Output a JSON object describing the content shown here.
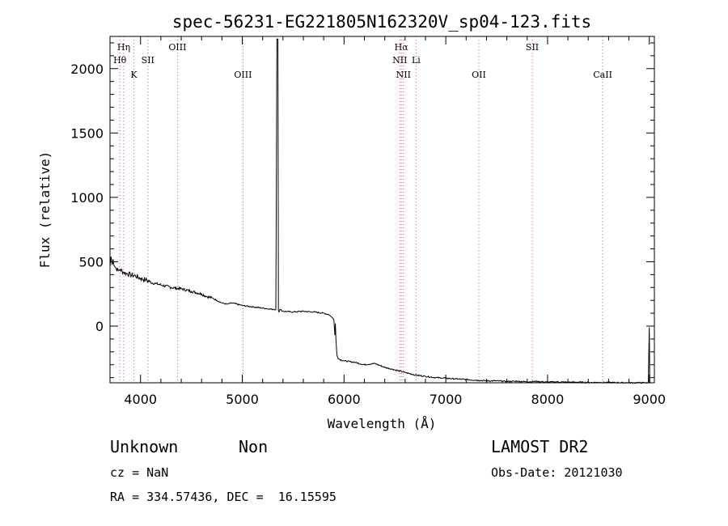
{
  "chart_data": {
    "type": "line",
    "title": "spec-56231-EG221805N162320V_sp04-123.fits",
    "xlabel": "Wavelength (Å)",
    "ylabel": "Flux (relative)",
    "xlim": [
      3700,
      9050
    ],
    "ylim": [
      -440,
      2250
    ],
    "xticks": [
      4000,
      5000,
      6000,
      7000,
      8000,
      9000
    ],
    "yticks": [
      0,
      500,
      1000,
      1500,
      2000
    ],
    "grid": false,
    "series": [
      {
        "x": [
          3700,
          3710,
          3720,
          3730,
          3740,
          3760,
          3780,
          3800,
          3830,
          3860,
          3900,
          3950,
          4000,
          4050,
          4100,
          4150,
          4200,
          4300,
          4400,
          4500,
          4600,
          4650,
          4700,
          4750,
          4800,
          4850,
          4900,
          5000,
          5100,
          5200,
          5300,
          5330,
          5340,
          5345,
          5350,
          5355,
          5360,
          5370,
          5400,
          5500,
          5600,
          5700,
          5800,
          5850,
          5880,
          5900,
          5910,
          5915,
          5920,
          5930,
          5940,
          5960,
          6000,
          6100,
          6200,
          6300,
          6400,
          6500,
          6600,
          6700,
          6800,
          6900,
          7000,
          7100,
          7200,
          7300,
          7400,
          7500,
          7600,
          7700,
          7800,
          7900,
          8000,
          8100,
          8200,
          8300,
          8400,
          8500,
          8600,
          8700,
          8800,
          8850,
          8900,
          8950,
          8990,
          9000,
          9005,
          9010,
          9020
        ],
        "y": [
          460,
          540,
          480,
          520,
          470,
          450,
          430,
          440,
          420,
          410,
          400,
          390,
          370,
          360,
          340,
          330,
          320,
          300,
          290,
          270,
          250,
          230,
          220,
          200,
          180,
          170,
          180,
          160,
          150,
          140,
          130,
          130,
          2230,
          2230,
          2230,
          120,
          110,
          130,
          115,
          110,
          115,
          110,
          100,
          90,
          70,
          50,
          -70,
          20,
          -100,
          -220,
          -250,
          -260,
          -270,
          -280,
          -300,
          -290,
          -320,
          -340,
          -360,
          -380,
          -390,
          -400,
          -405,
          -410,
          -415,
          -420,
          -425,
          -425,
          -430,
          -428,
          -432,
          -430,
          -435,
          -433,
          -436,
          -435,
          -438,
          -437,
          -438,
          -439,
          -440,
          -440,
          -440,
          -440,
          -440,
          -10,
          -440,
          -440,
          -440
        ]
      }
    ],
    "line_markers": [
      {
        "label": "Hη",
        "x": 3835,
        "row": 1
      },
      {
        "label": "Hθ",
        "x": 3797,
        "row": 2
      },
      {
        "label": "K",
        "x": 3934,
        "row": 3
      },
      {
        "label": "SII",
        "x": 4072,
        "row": 2
      },
      {
        "label": "OIII",
        "x": 4363,
        "row": 1
      },
      {
        "label": "OIII",
        "x": 5007,
        "row": 3
      },
      {
        "label": "Hα",
        "x": 6563,
        "row": 1
      },
      {
        "label": "NII",
        "x": 6548,
        "row": 2
      },
      {
        "label": "NII",
        "x": 6584,
        "row": 3
      },
      {
        "label": "Li",
        "x": 6708,
        "row": 2
      },
      {
        "label": "OII",
        "x": 7325,
        "row": 3
      },
      {
        "label": "SII",
        "x": 7850,
        "row": 1
      },
      {
        "label": "CaII",
        "x": 8542,
        "row": 3
      }
    ],
    "colors": {
      "spectrum": "#000000",
      "marker": "#e05050",
      "axis": "#000000"
    }
  },
  "info": {
    "class": "Unknown",
    "subclass": "Non",
    "survey": "LAMOST DR2",
    "cz": "cz = NaN",
    "obs_date": "Obs-Date: 20121030",
    "coords": "RA = 334.57436, DEC =  16.15595"
  }
}
